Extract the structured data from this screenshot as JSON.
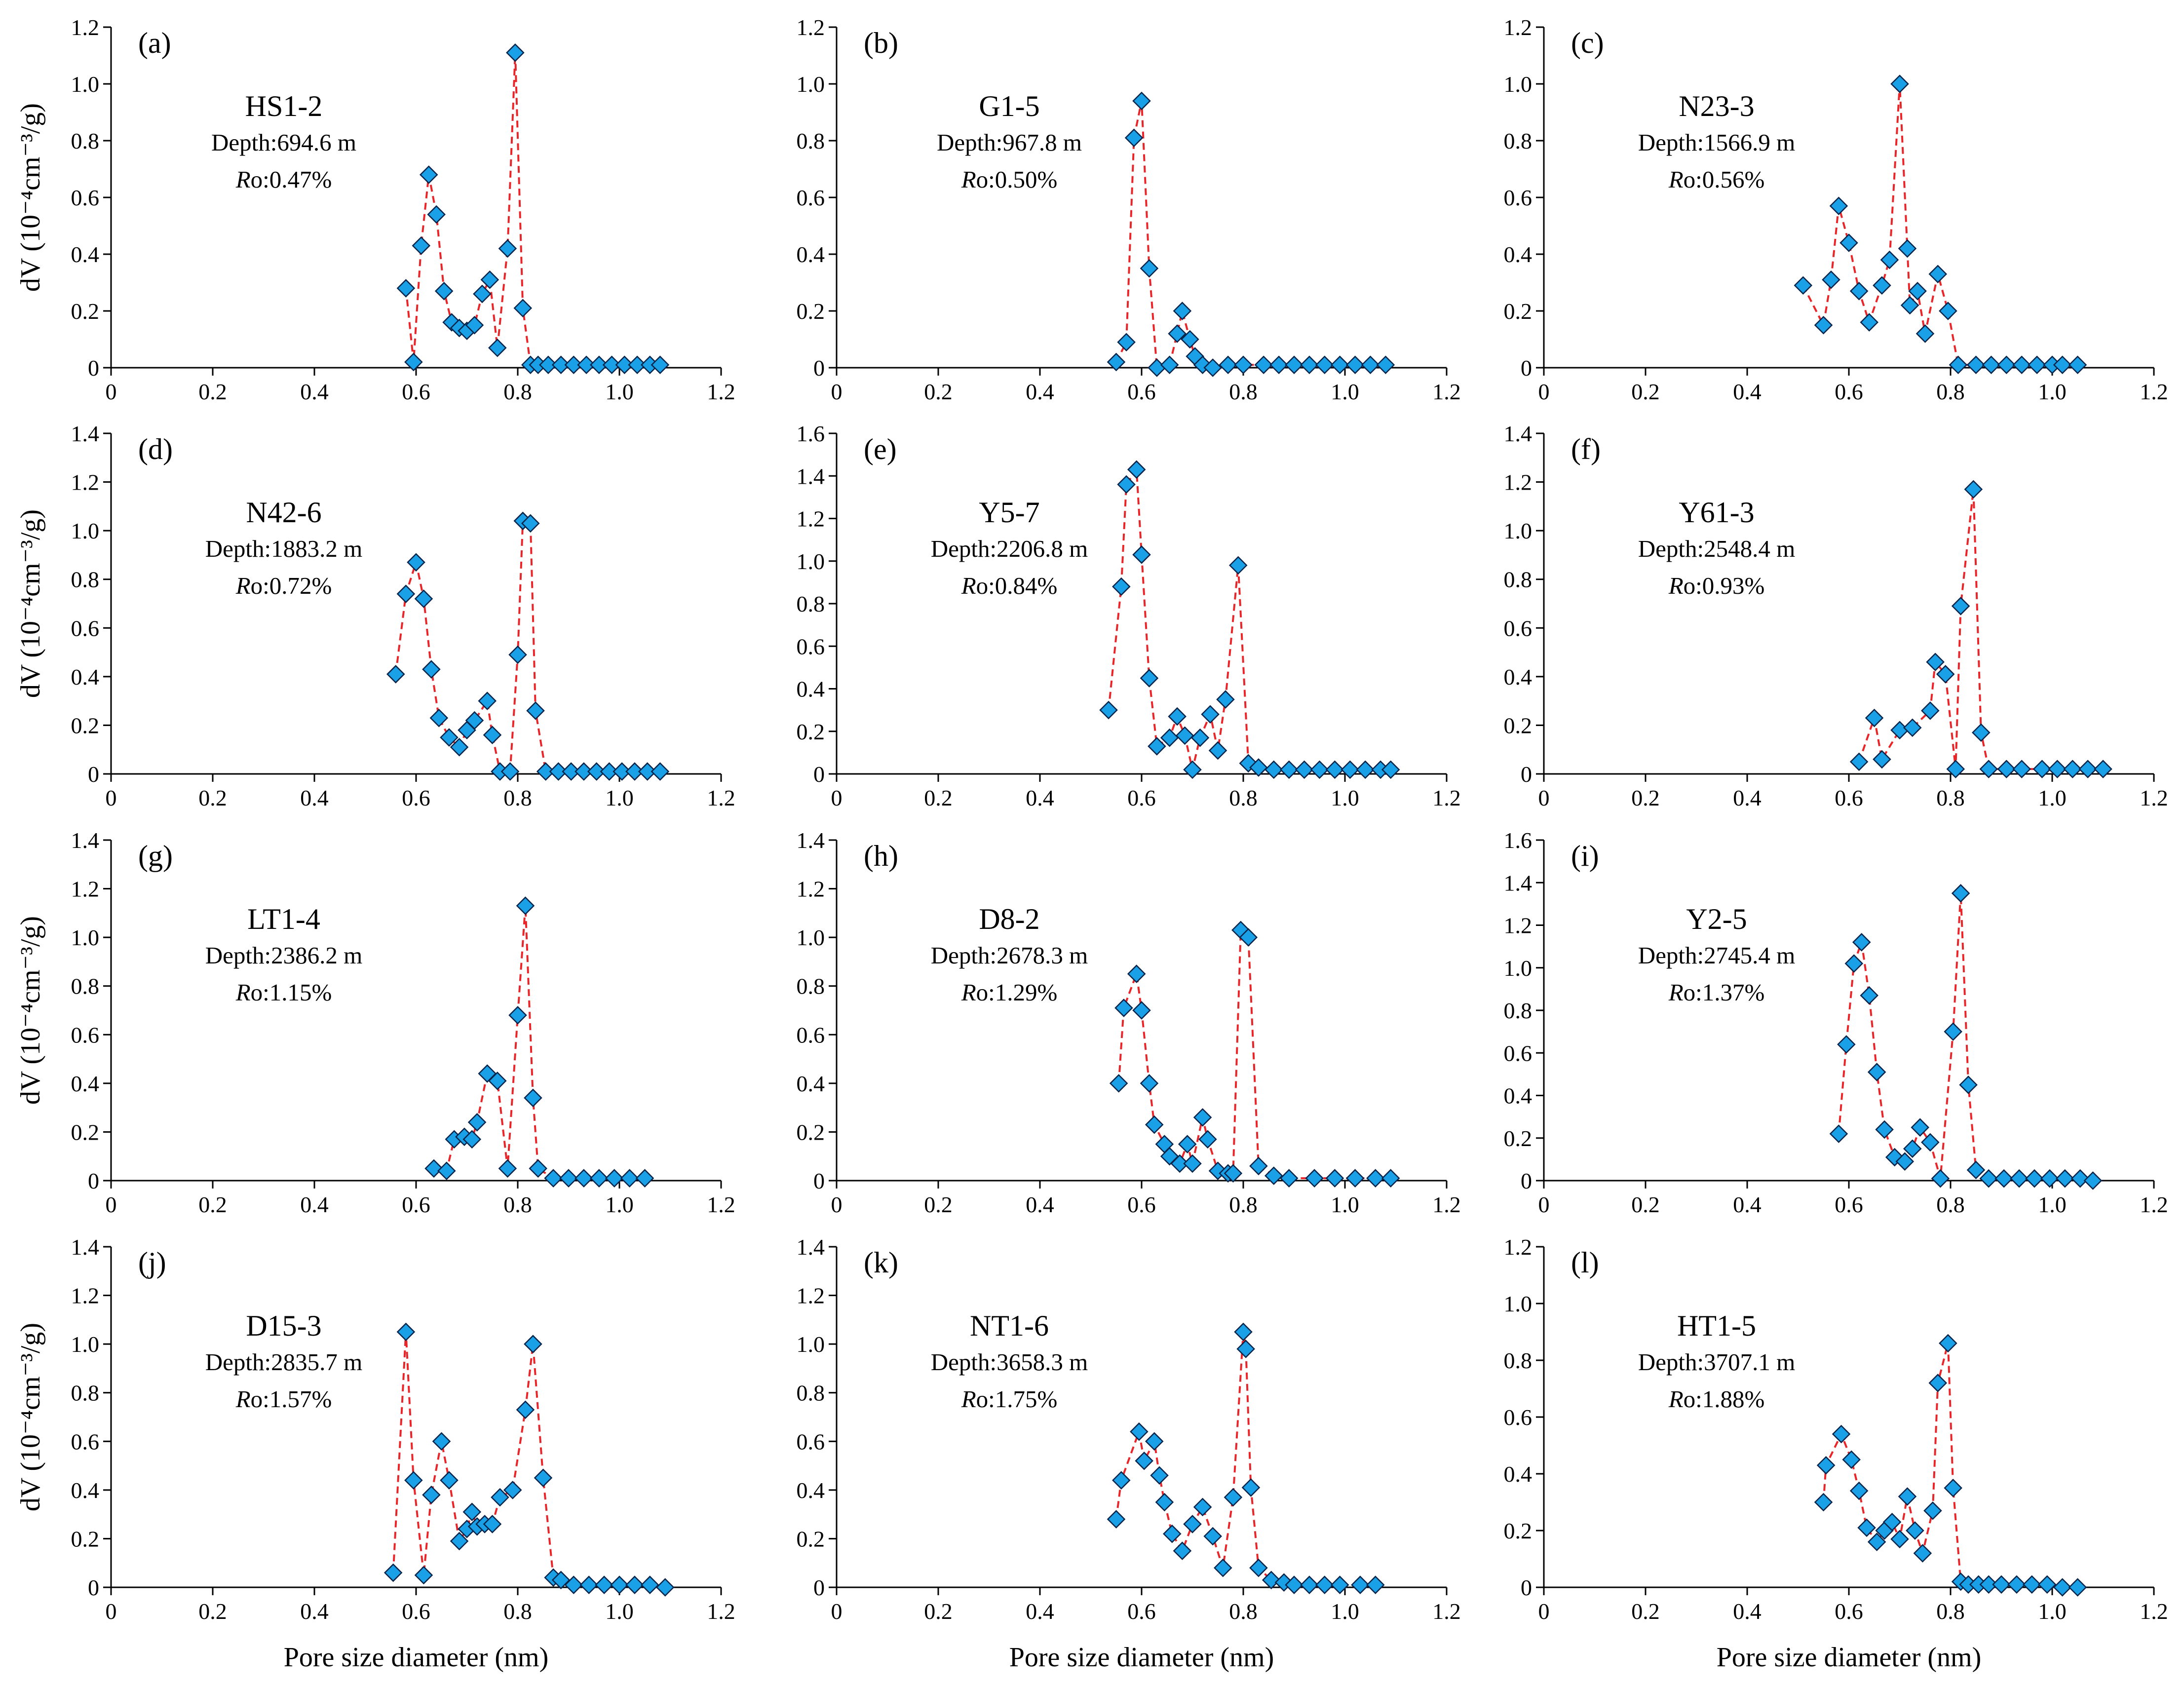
{
  "figure": {
    "y_axis_title": "dV (10⁻⁴cm⁻³/g)",
    "x_axis_title": "Pore size diameter (nm)",
    "marker_fill": "#1aa0e6",
    "marker_stroke": "#08244a",
    "line_color": "#e8262a"
  },
  "chart_data": [
    {
      "type": "line",
      "letter": "(a)",
      "sample": "HS1-2",
      "depth": "Depth:694.6 m",
      "ro_label": "Ro",
      "ro_value": ":0.47%",
      "ylim": [
        0,
        1.2
      ],
      "yticks": [
        "0",
        "0.2",
        "0.4",
        "0.6",
        "0.8",
        "1.0",
        "1.2"
      ],
      "xlim": [
        0,
        1.2
      ],
      "xticks": [
        "0",
        "0.2",
        "0.4",
        "0.6",
        "0.8",
        "1.0",
        "1.2"
      ],
      "xlabel": "",
      "ylabel": "dV (10⁻⁴cm⁻³/g)",
      "x": [
        0.58,
        0.595,
        0.61,
        0.625,
        0.64,
        0.655,
        0.67,
        0.685,
        0.7,
        0.715,
        0.73,
        0.745,
        0.76,
        0.78,
        0.795,
        0.81,
        0.825,
        0.84,
        0.86,
        0.885,
        0.91,
        0.935,
        0.96,
        0.985,
        1.01,
        1.035,
        1.06,
        1.08
      ],
      "y": [
        0.28,
        0.02,
        0.43,
        0.68,
        0.54,
        0.27,
        0.16,
        0.14,
        0.13,
        0.15,
        0.26,
        0.31,
        0.07,
        0.42,
        1.11,
        0.21,
        0.01,
        0.01,
        0.01,
        0.01,
        0.01,
        0.01,
        0.01,
        0.01,
        0.01,
        0.01,
        0.01,
        0.01
      ]
    },
    {
      "type": "line",
      "letter": "(b)",
      "sample": "G1-5",
      "depth": "Depth:967.8 m",
      "ro_label": "Ro",
      "ro_value": ":0.50%",
      "ylim": [
        0,
        1.2
      ],
      "yticks": [
        "0",
        "0.2",
        "0.4",
        "0.6",
        "0.8",
        "1.0",
        "1.2"
      ],
      "xlim": [
        0,
        1.2
      ],
      "xticks": [
        "0",
        "0.2",
        "0.4",
        "0.6",
        "0.8",
        "1.0",
        "1.2"
      ],
      "xlabel": "",
      "ylabel": "",
      "x": [
        0.55,
        0.57,
        0.585,
        0.6,
        0.615,
        0.63,
        0.655,
        0.67,
        0.68,
        0.695,
        0.705,
        0.72,
        0.74,
        0.77,
        0.8,
        0.84,
        0.87,
        0.9,
        0.93,
        0.96,
        0.99,
        1.02,
        1.05,
        1.08
      ],
      "y": [
        0.02,
        0.09,
        0.81,
        0.94,
        0.35,
        0.0,
        0.01,
        0.12,
        0.2,
        0.1,
        0.04,
        0.01,
        0.0,
        0.01,
        0.01,
        0.01,
        0.01,
        0.01,
        0.01,
        0.01,
        0.01,
        0.01,
        0.01,
        0.01
      ]
    },
    {
      "type": "line",
      "letter": "(c)",
      "sample": "N23-3",
      "depth": "Depth:1566.9 m",
      "ro_label": "Ro",
      "ro_value": ":0.56%",
      "ylim": [
        0,
        1.2
      ],
      "yticks": [
        "0",
        "0.2",
        "0.4",
        "0.6",
        "0.8",
        "1.0",
        "1.2"
      ],
      "xlim": [
        0,
        1.2
      ],
      "xticks": [
        "0",
        "0.2",
        "0.4",
        "0.6",
        "0.8",
        "1.0",
        "1.2"
      ],
      "xlabel": "",
      "ylabel": "",
      "x": [
        0.51,
        0.55,
        0.565,
        0.58,
        0.6,
        0.62,
        0.64,
        0.665,
        0.68,
        0.7,
        0.715,
        0.72,
        0.735,
        0.75,
        0.775,
        0.795,
        0.815,
        0.85,
        0.88,
        0.91,
        0.94,
        0.97,
        1.0,
        1.02,
        1.05
      ],
      "y": [
        0.29,
        0.15,
        0.31,
        0.57,
        0.44,
        0.27,
        0.16,
        0.29,
        0.38,
        1.0,
        0.42,
        0.22,
        0.27,
        0.12,
        0.33,
        0.2,
        0.01,
        0.01,
        0.01,
        0.01,
        0.01,
        0.01,
        0.01,
        0.01,
        0.01
      ]
    },
    {
      "type": "line",
      "letter": "(d)",
      "sample": "N42-6",
      "depth": "Depth:1883.2 m",
      "ro_label": "Ro",
      "ro_value": ":0.72%",
      "ylim": [
        0,
        1.4
      ],
      "yticks": [
        "0",
        "0.2",
        "0.4",
        "0.6",
        "0.8",
        "1.0",
        "1.2",
        "1.4"
      ],
      "xlim": [
        0,
        1.2
      ],
      "xticks": [
        "0",
        "0.2",
        "0.4",
        "0.6",
        "0.8",
        "1.0",
        "1.2"
      ],
      "xlabel": "",
      "ylabel": "dV (10⁻⁴cm⁻³/g)",
      "x": [
        0.56,
        0.58,
        0.6,
        0.615,
        0.63,
        0.645,
        0.665,
        0.685,
        0.7,
        0.715,
        0.74,
        0.75,
        0.765,
        0.785,
        0.8,
        0.81,
        0.825,
        0.835,
        0.855,
        0.88,
        0.905,
        0.93,
        0.955,
        0.98,
        1.005,
        1.03,
        1.055,
        1.08
      ],
      "y": [
        0.41,
        0.74,
        0.87,
        0.72,
        0.43,
        0.23,
        0.15,
        0.11,
        0.18,
        0.22,
        0.3,
        0.16,
        0.01,
        0.01,
        0.49,
        1.04,
        1.03,
        0.26,
        0.01,
        0.01,
        0.01,
        0.01,
        0.01,
        0.01,
        0.01,
        0.01,
        0.01,
        0.01
      ]
    },
    {
      "type": "line",
      "letter": "(e)",
      "sample": "Y5-7",
      "depth": "Depth:2206.8 m",
      "ro_label": "Ro",
      "ro_value": ":0.84%",
      "ylim": [
        0,
        1.6
      ],
      "yticks": [
        "0",
        "0.2",
        "0.4",
        "0.6",
        "0.8",
        "1.0",
        "1.2",
        "1.4",
        "1.6"
      ],
      "xlim": [
        0,
        1.2
      ],
      "xticks": [
        "0",
        "0.2",
        "0.4",
        "0.6",
        "0.8",
        "1.0",
        "1.2"
      ],
      "xlabel": "",
      "ylabel": "",
      "x": [
        0.535,
        0.56,
        0.57,
        0.59,
        0.6,
        0.615,
        0.63,
        0.655,
        0.67,
        0.685,
        0.7,
        0.715,
        0.735,
        0.75,
        0.765,
        0.79,
        0.81,
        0.83,
        0.86,
        0.89,
        0.92,
        0.95,
        0.98,
        1.01,
        1.04,
        1.07,
        1.09
      ],
      "y": [
        0.3,
        0.88,
        1.36,
        1.43,
        1.03,
        0.45,
        0.13,
        0.17,
        0.27,
        0.18,
        0.02,
        0.17,
        0.28,
        0.11,
        0.35,
        0.98,
        0.05,
        0.03,
        0.02,
        0.02,
        0.02,
        0.02,
        0.02,
        0.02,
        0.02,
        0.02,
        0.02
      ]
    },
    {
      "type": "line",
      "letter": "(f)",
      "sample": "Y61-3",
      "depth": "Depth:2548.4 m",
      "ro_label": "Ro",
      "ro_value": ":0.93%",
      "ylim": [
        0,
        1.4
      ],
      "yticks": [
        "0",
        "0.2",
        "0.4",
        "0.6",
        "0.8",
        "1.0",
        "1.2",
        "1.4"
      ],
      "xlim": [
        0,
        1.2
      ],
      "xticks": [
        "0",
        "0.2",
        "0.4",
        "0.6",
        "0.8",
        "1.0",
        "1.2"
      ],
      "xlabel": "",
      "ylabel": "",
      "x": [
        0.62,
        0.65,
        0.665,
        0.7,
        0.725,
        0.76,
        0.77,
        0.79,
        0.81,
        0.82,
        0.845,
        0.86,
        0.875,
        0.91,
        0.94,
        0.98,
        1.01,
        1.04,
        1.07,
        1.1
      ],
      "y": [
        0.05,
        0.23,
        0.06,
        0.18,
        0.19,
        0.26,
        0.46,
        0.41,
        0.02,
        0.69,
        1.17,
        0.17,
        0.02,
        0.02,
        0.02,
        0.02,
        0.02,
        0.02,
        0.02,
        0.02
      ]
    },
    {
      "type": "line",
      "letter": "(g)",
      "sample": "LT1-4",
      "depth": "Depth:2386.2 m",
      "ro_label": "Ro",
      "ro_value": ":1.15%",
      "ylim": [
        0,
        1.4
      ],
      "yticks": [
        "0",
        "0.2",
        "0.4",
        "0.6",
        "0.8",
        "1.0",
        "1.2",
        "1.4"
      ],
      "xlim": [
        0,
        1.2
      ],
      "xticks": [
        "0",
        "0.2",
        "0.4",
        "0.6",
        "0.8",
        "1.0",
        "1.2"
      ],
      "xlabel": "",
      "ylabel": "dV (10⁻⁴cm⁻³/g)",
      "x": [
        0.635,
        0.66,
        0.675,
        0.695,
        0.71,
        0.72,
        0.74,
        0.76,
        0.78,
        0.8,
        0.815,
        0.83,
        0.84,
        0.87,
        0.9,
        0.93,
        0.96,
        0.99,
        1.02,
        1.05
      ],
      "y": [
        0.05,
        0.04,
        0.17,
        0.18,
        0.17,
        0.24,
        0.44,
        0.41,
        0.05,
        0.68,
        1.13,
        0.34,
        0.05,
        0.01,
        0.01,
        0.01,
        0.01,
        0.01,
        0.01,
        0.01
      ]
    },
    {
      "type": "line",
      "letter": "(h)",
      "sample": "D8-2",
      "depth": "Depth:2678.3 m",
      "ro_label": "Ro",
      "ro_value": ":1.29%",
      "ylim": [
        0,
        1.4
      ],
      "yticks": [
        "0",
        "0.2",
        "0.4",
        "0.6",
        "0.8",
        "1.0",
        "1.2",
        "1.4"
      ],
      "xlim": [
        0,
        1.2
      ],
      "xticks": [
        "0",
        "0.2",
        "0.4",
        "0.6",
        "0.8",
        "1.0",
        "1.2"
      ],
      "xlabel": "",
      "ylabel": "",
      "x": [
        0.555,
        0.565,
        0.59,
        0.6,
        0.615,
        0.625,
        0.645,
        0.655,
        0.675,
        0.69,
        0.7,
        0.72,
        0.73,
        0.75,
        0.77,
        0.78,
        0.795,
        0.81,
        0.83,
        0.86,
        0.89,
        0.94,
        0.98,
        1.02,
        1.06,
        1.09
      ],
      "y": [
        0.4,
        0.71,
        0.85,
        0.7,
        0.4,
        0.23,
        0.15,
        0.1,
        0.07,
        0.15,
        0.07,
        0.26,
        0.17,
        0.04,
        0.03,
        0.03,
        1.03,
        1.0,
        0.06,
        0.02,
        0.01,
        0.01,
        0.01,
        0.01,
        0.01,
        0.01
      ]
    },
    {
      "type": "line",
      "letter": "(i)",
      "sample": "Y2-5",
      "depth": "Depth:2745.4 m",
      "ro_label": "Ro",
      "ro_value": ":1.37%",
      "ylim": [
        0,
        1.6
      ],
      "yticks": [
        "0",
        "0.2",
        "0.4",
        "0.6",
        "0.8",
        "1.0",
        "1.2",
        "1.4",
        "1.6"
      ],
      "xlim": [
        0,
        1.2
      ],
      "xticks": [
        "0",
        "0.2",
        "0.4",
        "0.6",
        "0.8",
        "1.0",
        "1.2"
      ],
      "xlabel": "",
      "ylabel": "",
      "x": [
        0.58,
        0.595,
        0.61,
        0.625,
        0.64,
        0.655,
        0.67,
        0.69,
        0.71,
        0.725,
        0.74,
        0.76,
        0.78,
        0.805,
        0.82,
        0.835,
        0.85,
        0.875,
        0.905,
        0.935,
        0.965,
        0.995,
        1.025,
        1.055,
        1.08
      ],
      "y": [
        0.22,
        0.64,
        1.02,
        1.12,
        0.87,
        0.51,
        0.24,
        0.11,
        0.09,
        0.15,
        0.25,
        0.18,
        0.01,
        0.7,
        1.35,
        0.45,
        0.05,
        0.01,
        0.01,
        0.01,
        0.01,
        0.01,
        0.01,
        0.01,
        0.0
      ]
    },
    {
      "type": "line",
      "letter": "(j)",
      "sample": "D15-3",
      "depth": "Depth:2835.7 m",
      "ro_label": "Ro",
      "ro_value": ":1.57%",
      "ylim": [
        0,
        1.4
      ],
      "yticks": [
        "0",
        "0.2",
        "0.4",
        "0.6",
        "0.8",
        "1.0",
        "1.2",
        "1.4"
      ],
      "xlim": [
        0,
        1.2
      ],
      "xticks": [
        "0",
        "0.2",
        "0.4",
        "0.6",
        "0.8",
        "1.0",
        "1.2"
      ],
      "xlabel": "Pore size diameter (nm)",
      "ylabel": "dV (10⁻⁴cm⁻³/g)",
      "x": [
        0.555,
        0.58,
        0.595,
        0.615,
        0.63,
        0.65,
        0.665,
        0.685,
        0.7,
        0.71,
        0.72,
        0.735,
        0.75,
        0.765,
        0.79,
        0.815,
        0.83,
        0.85,
        0.87,
        0.885,
        0.91,
        0.94,
        0.97,
        1.0,
        1.03,
        1.06,
        1.09
      ],
      "y": [
        0.06,
        1.05,
        0.44,
        0.05,
        0.38,
        0.6,
        0.44,
        0.19,
        0.24,
        0.31,
        0.25,
        0.26,
        0.26,
        0.37,
        0.4,
        0.73,
        1.0,
        0.45,
        0.04,
        0.03,
        0.01,
        0.01,
        0.01,
        0.01,
        0.01,
        0.01,
        0.0
      ]
    },
    {
      "type": "line",
      "letter": "(k)",
      "sample": "NT1-6",
      "depth": "Depth:3658.3 m",
      "ro_label": "Ro",
      "ro_value": ":1.75%",
      "ylim": [
        0,
        1.4
      ],
      "yticks": [
        "0",
        "0.2",
        "0.4",
        "0.6",
        "0.8",
        "1.0",
        "1.2",
        "1.4"
      ],
      "xlim": [
        0,
        1.2
      ],
      "xticks": [
        "0",
        "0.2",
        "0.4",
        "0.6",
        "0.8",
        "1.0",
        "1.2"
      ],
      "xlabel": "Pore size diameter (nm)",
      "ylabel": "",
      "x": [
        0.55,
        0.56,
        0.595,
        0.605,
        0.625,
        0.635,
        0.645,
        0.66,
        0.68,
        0.7,
        0.72,
        0.74,
        0.76,
        0.78,
        0.8,
        0.805,
        0.815,
        0.83,
        0.855,
        0.88,
        0.9,
        0.93,
        0.96,
        0.99,
        1.03,
        1.06
      ],
      "y": [
        0.28,
        0.44,
        0.64,
        0.52,
        0.6,
        0.46,
        0.35,
        0.22,
        0.15,
        0.26,
        0.33,
        0.21,
        0.08,
        0.37,
        1.05,
        0.98,
        0.41,
        0.08,
        0.03,
        0.02,
        0.01,
        0.01,
        0.01,
        0.01,
        0.01,
        0.01
      ]
    },
    {
      "type": "line",
      "letter": "(l)",
      "sample": "HT1-5",
      "depth": "Depth:3707.1 m",
      "ro_label": "Ro",
      "ro_value": ":1.88%",
      "ylim": [
        0,
        1.2
      ],
      "yticks": [
        "0",
        "0.2",
        "0.4",
        "0.6",
        "0.8",
        "1.0",
        "1.2"
      ],
      "xlim": [
        0,
        1.2
      ],
      "xticks": [
        "0",
        "0.2",
        "0.4",
        "0.6",
        "0.8",
        "1.0",
        "1.2"
      ],
      "xlabel": "Pore size diameter (nm)",
      "ylabel": "",
      "x": [
        0.55,
        0.555,
        0.585,
        0.605,
        0.62,
        0.635,
        0.655,
        0.67,
        0.685,
        0.7,
        0.715,
        0.73,
        0.745,
        0.765,
        0.775,
        0.795,
        0.805,
        0.82,
        0.835,
        0.855,
        0.875,
        0.9,
        0.93,
        0.96,
        0.99,
        1.02,
        1.05
      ],
      "y": [
        0.3,
        0.43,
        0.54,
        0.45,
        0.34,
        0.21,
        0.16,
        0.2,
        0.23,
        0.17,
        0.32,
        0.2,
        0.12,
        0.27,
        0.72,
        0.86,
        0.35,
        0.02,
        0.01,
        0.01,
        0.01,
        0.01,
        0.01,
        0.01,
        0.01,
        0.0,
        0.0
      ]
    }
  ]
}
